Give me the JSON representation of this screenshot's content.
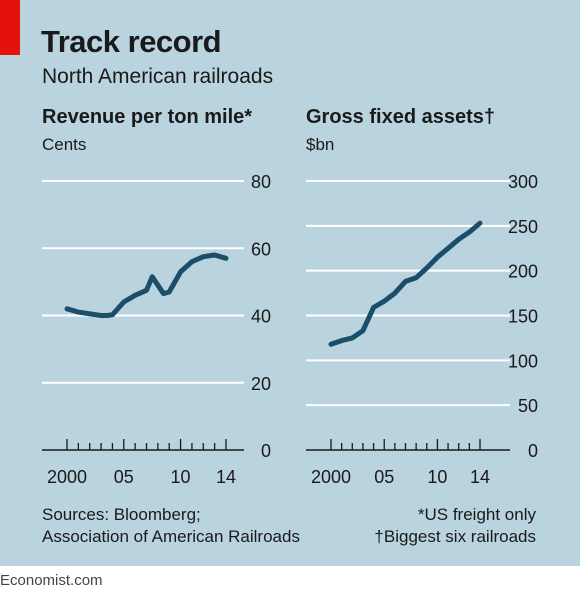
{
  "header": {
    "title": "Track record",
    "subtitle": "North American railroads"
  },
  "footer": {
    "sources_line1": "Sources: Bloomberg;",
    "sources_line2": "Association of American Railroads",
    "note1": "*US freight only",
    "note2": "†Biggest six railroads",
    "brand": "Economist.com"
  },
  "colors": {
    "background": "#b9d3df",
    "line": "#1b4e69",
    "accent": "#e3120b"
  },
  "chart_data": [
    {
      "type": "line",
      "title": "Revenue per ton mile*",
      "ylabel": "Cents",
      "xlabel": "",
      "x_tick_labels": [
        {
          "year": 2000,
          "label": "2000"
        },
        {
          "year": 2005,
          "label": "05"
        },
        {
          "year": 2010,
          "label": "10"
        },
        {
          "year": 2014,
          "label": "14"
        }
      ],
      "xlim": [
        2000,
        2014
      ],
      "ylim": [
        0,
        80
      ],
      "y_ticks": [
        0,
        20,
        40,
        60,
        80
      ],
      "grid": true,
      "series": [
        {
          "x": [
            2000,
            2001,
            2002,
            2003,
            2003.5,
            2004,
            2005,
            2006,
            2007,
            2007.5,
            2008,
            2008.5,
            2009,
            2009.5,
            2010,
            2011,
            2012,
            2013,
            2014
          ],
          "y": [
            42,
            41,
            40.5,
            40,
            40,
            40.2,
            44,
            46,
            47.5,
            51.5,
            49,
            46.5,
            47,
            50,
            53,
            56,
            57.5,
            58,
            57
          ]
        }
      ]
    },
    {
      "type": "line",
      "title": "Gross fixed assets†",
      "ylabel": "$bn",
      "xlabel": "",
      "x_tick_labels": [
        {
          "year": 2000,
          "label": "2000"
        },
        {
          "year": 2005,
          "label": "05"
        },
        {
          "year": 2010,
          "label": "10"
        },
        {
          "year": 2014,
          "label": "14"
        }
      ],
      "xlim": [
        2000,
        2014
      ],
      "ylim": [
        0,
        300
      ],
      "y_ticks": [
        0,
        50,
        100,
        150,
        200,
        250,
        300
      ],
      "grid": true,
      "series": [
        {
          "x": [
            2000,
            2001,
            2002,
            2003,
            2004,
            2005,
            2006,
            2007,
            2008,
            2009,
            2010,
            2011,
            2012,
            2013,
            2014
          ],
          "y": [
            118,
            122,
            125,
            133,
            159,
            166,
            175,
            188,
            192,
            203,
            215,
            225,
            235,
            243,
            253
          ]
        }
      ]
    }
  ]
}
